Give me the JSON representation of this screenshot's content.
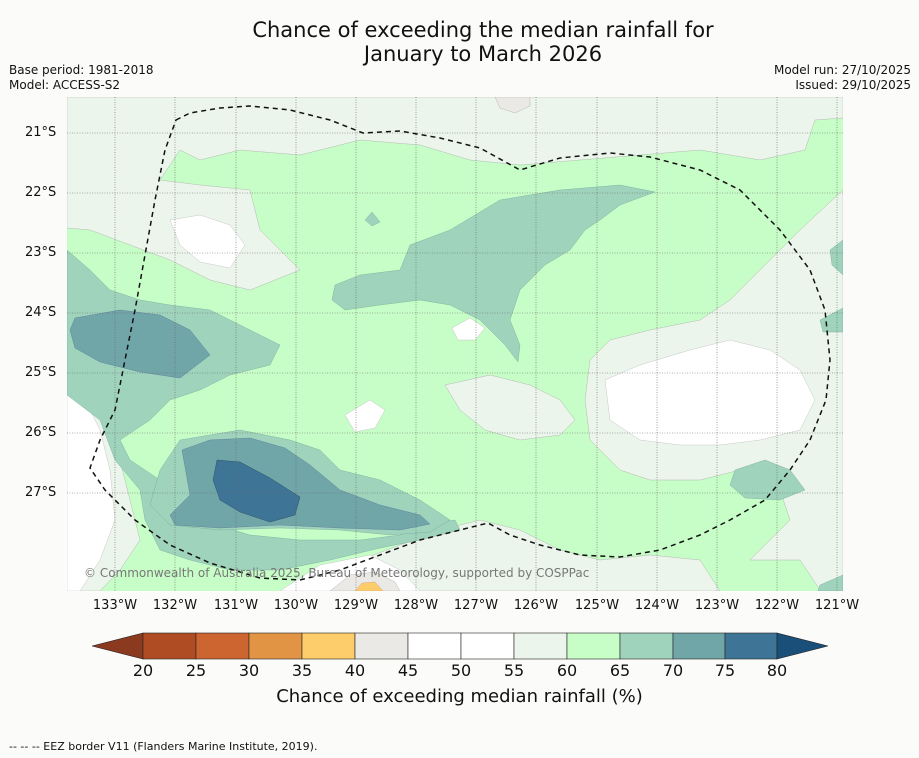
{
  "title": {
    "line1": "Chance of exceeding the median rainfall for",
    "line2": "January to March 2026"
  },
  "meta_left": {
    "base_period": "Base period: 1981-2018",
    "model": "Model: ACCESS-S2"
  },
  "meta_right": {
    "model_run": "Model run: 27/10/2025",
    "issued": "Issued: 29/10/2025"
  },
  "credit": "© Commonwealth of Australia 2025, Bureau of Meteorology, supported by COSPPac",
  "lat_labels": [
    "21°S",
    "22°S",
    "23°S",
    "24°S",
    "25°S",
    "26°S",
    "27°S"
  ],
  "lon_labels": [
    "133°W",
    "132°W",
    "131°W",
    "130°W",
    "129°W",
    "128°W",
    "127°W",
    "126°W",
    "125°W",
    "124°W",
    "123°W",
    "122°W",
    "121°W"
  ],
  "colorbar": {
    "ticks": [
      "20",
      "25",
      "30",
      "35",
      "40",
      "45",
      "50",
      "55",
      "60",
      "65",
      "70",
      "75",
      "80"
    ],
    "colors": {
      "below20": "#8c3a1f",
      "20-25": "#b04c24",
      "25-30": "#cd6530",
      "30-35": "#e19444",
      "35-40": "#fdcc6b",
      "40-45": "#ebe9e5",
      "45-50": "#ffffff",
      "50-55": "#ffffff",
      "55-60": "#ebf5eb",
      "60-65": "#c7fdc7",
      "65-70": "#9fd3bc",
      "70-75": "#71a6a9",
      "75-80": "#3e7596",
      "above80": "#1a4f7a"
    },
    "label": "Chance of exceeding median rainfall (%)"
  },
  "footer": "-- -- -- EEZ border V11 (Flanders Marine Institute, 2019)."
}
